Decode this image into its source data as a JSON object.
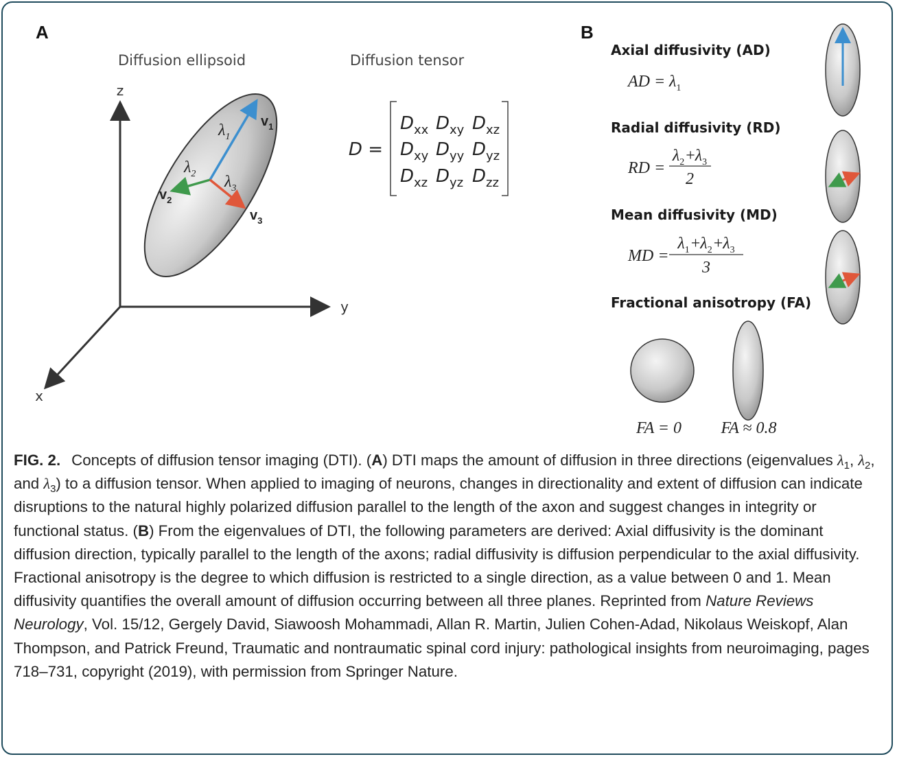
{
  "panel_a": {
    "label": "A",
    "ellipsoid_title": "Diffusion ellipsoid",
    "tensor_title": "Diffusion tensor",
    "axes": {
      "z": "z",
      "y": "y",
      "x": "x"
    },
    "eigenvalues": [
      {
        "symbol": "λ",
        "sub": "1"
      },
      {
        "symbol": "λ",
        "sub": "2"
      },
      {
        "symbol": "λ",
        "sub": "3"
      }
    ],
    "eigenvectors": [
      {
        "symbol": "v",
        "sub": "1"
      },
      {
        "symbol": "v",
        "sub": "2"
      },
      {
        "symbol": "v",
        "sub": "3"
      }
    ],
    "tensor": {
      "lhs": "D =",
      "symbol": "D",
      "rows": [
        [
          "xx",
          "xy",
          "xz"
        ],
        [
          "xy",
          "yy",
          "yz"
        ],
        [
          "xz",
          "yz",
          "zz"
        ]
      ]
    }
  },
  "panel_b": {
    "label": "B",
    "measures": [
      {
        "title": "Axial diffusivity (AD)",
        "lhs": "AD =",
        "numerator": [
          {
            "text": "λ",
            "sub": "1"
          }
        ]
      },
      {
        "title": "Radial diffusivity (RD)",
        "lhs": "RD =",
        "numerator": [
          {
            "text": "λ",
            "sub": "2"
          },
          {
            "text": "+"
          },
          {
            "text": "λ",
            "sub": "3"
          }
        ],
        "denominator": "2"
      },
      {
        "title": "Mean diffusivity (MD)",
        "lhs": "MD =",
        "numerator": [
          {
            "text": "λ",
            "sub": "1"
          },
          {
            "text": "+"
          },
          {
            "text": "λ",
            "sub": "2"
          },
          {
            "text": "+"
          },
          {
            "text": "λ",
            "sub": "3"
          }
        ],
        "denominator": "3"
      }
    ],
    "fa": {
      "title": "Fractional anisotropy (FA)",
      "examples": [
        "FA = 0",
        "FA ≈ 0.8"
      ]
    }
  },
  "caption": {
    "runs": [
      {
        "text": "FIG. 2.",
        "style": "bold"
      },
      {
        "text": "Concepts of diffusion tensor imaging (DTI). (",
        "style": "gap"
      },
      {
        "text": "A",
        "style": "bold"
      },
      {
        "text": ") DTI maps the amount of diffusion in three directions (eigenvalues ",
        "style": "normal"
      },
      {
        "text": "λ",
        "style": "italic"
      },
      {
        "text": "1",
        "style": "sub"
      },
      {
        "text": ", ",
        "style": "normal"
      },
      {
        "text": "λ",
        "style": "italic"
      },
      {
        "text": "2",
        "style": "sub"
      },
      {
        "text": ", and ",
        "style": "normal"
      },
      {
        "text": "λ",
        "style": "italic"
      },
      {
        "text": "3",
        "style": "sub"
      },
      {
        "text": ") to a diffusion tensor. When applied to imaging of neurons, changes in directionality and extent of diffusion can indicate disruptions to the natural highly polarized diffusion parallel to the length of the axon and suggest changes in integrity or functional status. (",
        "style": "normal"
      },
      {
        "text": "B",
        "style": "bold"
      },
      {
        "text": ") From the eigenvalues of DTI, the following parameters are derived: Axial diffusivity is the dominant diffusion direction, typically parallel to the length of the axons; radial diffusivity is diffusion perpendicular to the axial diffusivity. Fractional anisotropy is the degree to which diffusion is restricted to a single direction, as a value between 0 and 1. Mean diffusivity quantifies the overall amount of diffusion occurring between all three planes. Reprinted from ",
        "style": "normal"
      },
      {
        "text": "Nature Reviews Neurology",
        "style": "title-italic"
      },
      {
        "text": ", Vol. 15/12, Gergely David, Siawoosh Mohammadi, Allan R. Martin, Julien Cohen-Adad, Nikolaus Weiskopf, Alan Thompson, and Patrick Freund, Traumatic and nontraumatic spinal cord injury: pathological insights from neuroimaging, pages 718–731, copyright (2019), with permission from Springer Nature.",
        "style": "normal"
      }
    ]
  }
}
